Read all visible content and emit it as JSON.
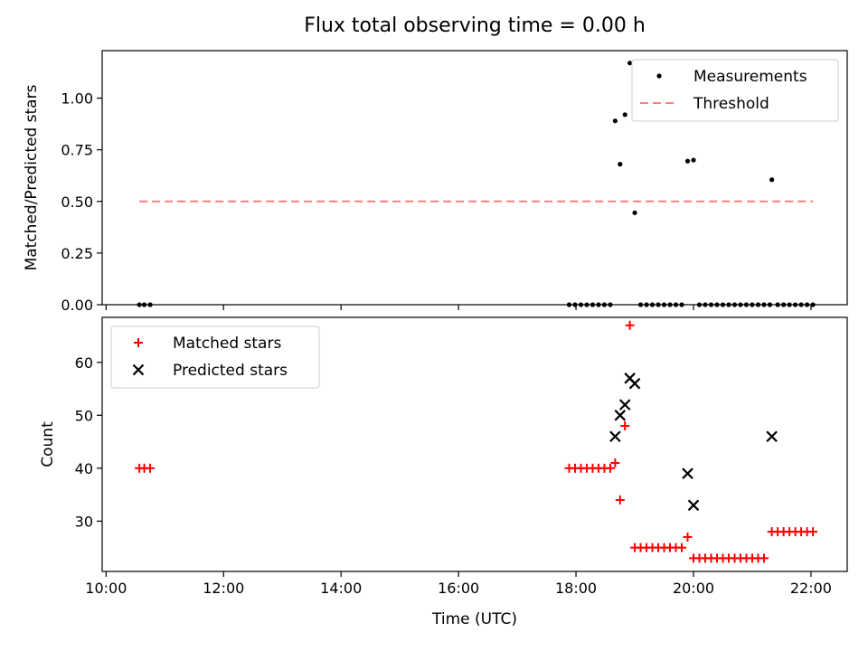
{
  "figure": {
    "title": "Flux total observing time = 0.00 h",
    "xlabel": "Time (UTC)"
  },
  "chart_data": [
    {
      "type": "scatter",
      "ylabel": "Matched/Predicted stars",
      "xlim": [
        "09:56",
        "22:37"
      ],
      "ylim": [
        0,
        1.23
      ],
      "x_ticks": [
        "10:00",
        "12:00",
        "14:00",
        "16:00",
        "18:00",
        "20:00",
        "22:00"
      ],
      "y_ticks": [
        0.0,
        0.25,
        0.5,
        0.75,
        1.0
      ],
      "y_tick_labels": [
        "0.00",
        "0.25",
        "0.50",
        "0.75",
        "1.00"
      ],
      "legend": {
        "placement": "top-right",
        "entries": [
          "Measurements",
          "Threshold"
        ]
      },
      "series": [
        {
          "name": "Measurements",
          "marker": "dot",
          "color": "#000000",
          "points": [
            [
              "10:34",
              0
            ],
            [
              "10:39",
              0
            ],
            [
              "10:45",
              0
            ],
            [
              "17:53",
              0
            ],
            [
              "17:59",
              0
            ],
            [
              "18:05",
              0
            ],
            [
              "18:11",
              0
            ],
            [
              "18:17",
              0
            ],
            [
              "18:23",
              0
            ],
            [
              "18:29",
              0
            ],
            [
              "18:35",
              0
            ],
            [
              "18:40",
              0.89
            ],
            [
              "18:45",
              0.68
            ],
            [
              "18:50",
              0.92
            ],
            [
              "18:55",
              1.17
            ],
            [
              "19:00",
              0.445
            ],
            [
              "19:06",
              0
            ],
            [
              "19:12",
              0
            ],
            [
              "19:18",
              0
            ],
            [
              "19:24",
              0
            ],
            [
              "19:30",
              0
            ],
            [
              "19:36",
              0
            ],
            [
              "19:42",
              0
            ],
            [
              "19:48",
              0
            ],
            [
              "19:54",
              0.695
            ],
            [
              "20:00",
              0.7
            ],
            [
              "20:06",
              0
            ],
            [
              "20:12",
              0
            ],
            [
              "20:18",
              0
            ],
            [
              "20:24",
              0
            ],
            [
              "20:30",
              0
            ],
            [
              "20:36",
              0
            ],
            [
              "20:42",
              0
            ],
            [
              "20:48",
              0
            ],
            [
              "20:54",
              0
            ],
            [
              "21:00",
              0
            ],
            [
              "21:06",
              0
            ],
            [
              "21:12",
              0
            ],
            [
              "21:18",
              0
            ],
            [
              "21:20",
              0.605
            ],
            [
              "21:26",
              0
            ],
            [
              "21:32",
              0
            ],
            [
              "21:38",
              0
            ],
            [
              "21:44",
              0
            ],
            [
              "21:50",
              0
            ],
            [
              "21:56",
              0
            ],
            [
              "22:02",
              0
            ]
          ]
        },
        {
          "name": "Threshold",
          "marker": "dashed-line",
          "color": "#ff7f7f",
          "points": [
            [
              "10:34",
              0.5
            ],
            [
              "22:02",
              0.5
            ]
          ]
        }
      ]
    },
    {
      "type": "scatter",
      "ylabel": "Count",
      "xlim": [
        "09:56",
        "22:37"
      ],
      "ylim": [
        20.5,
        68.5
      ],
      "x_ticks": [
        "10:00",
        "12:00",
        "14:00",
        "16:00",
        "18:00",
        "20:00",
        "22:00"
      ],
      "y_ticks": [
        30,
        40,
        50,
        60
      ],
      "y_tick_labels": [
        "30",
        "40",
        "50",
        "60"
      ],
      "legend": {
        "placement": "top-left",
        "entries": [
          "Matched stars",
          "Predicted stars"
        ]
      },
      "series": [
        {
          "name": "Matched stars",
          "marker": "plus",
          "color": "#ff0000",
          "points": [
            [
              "10:34",
              40
            ],
            [
              "10:39",
              40
            ],
            [
              "10:45",
              40
            ],
            [
              "17:53",
              40
            ],
            [
              "17:59",
              40
            ],
            [
              "18:05",
              40
            ],
            [
              "18:11",
              40
            ],
            [
              "18:17",
              40
            ],
            [
              "18:23",
              40
            ],
            [
              "18:29",
              40
            ],
            [
              "18:35",
              40
            ],
            [
              "18:40",
              41
            ],
            [
              "18:45",
              34
            ],
            [
              "18:50",
              48
            ],
            [
              "18:55",
              67
            ],
            [
              "19:00",
              25
            ],
            [
              "19:06",
              25
            ],
            [
              "19:12",
              25
            ],
            [
              "19:18",
              25
            ],
            [
              "19:24",
              25
            ],
            [
              "19:30",
              25
            ],
            [
              "19:36",
              25
            ],
            [
              "19:42",
              25
            ],
            [
              "19:48",
              25
            ],
            [
              "19:54",
              27
            ],
            [
              "20:00",
              23
            ],
            [
              "20:06",
              23
            ],
            [
              "20:12",
              23
            ],
            [
              "20:18",
              23
            ],
            [
              "20:24",
              23
            ],
            [
              "20:30",
              23
            ],
            [
              "20:36",
              23
            ],
            [
              "20:42",
              23
            ],
            [
              "20:48",
              23
            ],
            [
              "20:54",
              23
            ],
            [
              "21:00",
              23
            ],
            [
              "21:06",
              23
            ],
            [
              "21:12",
              23
            ],
            [
              "21:20",
              28
            ],
            [
              "21:26",
              28
            ],
            [
              "21:32",
              28
            ],
            [
              "21:38",
              28
            ],
            [
              "21:44",
              28
            ],
            [
              "21:50",
              28
            ],
            [
              "21:56",
              28
            ],
            [
              "22:02",
              28
            ]
          ]
        },
        {
          "name": "Predicted stars",
          "marker": "x",
          "color": "#000000",
          "points": [
            [
              "18:40",
              46
            ],
            [
              "18:45",
              50
            ],
            [
              "18:50",
              52
            ],
            [
              "18:55",
              57
            ],
            [
              "19:00",
              56
            ],
            [
              "19:54",
              39
            ],
            [
              "20:00",
              33
            ],
            [
              "21:20",
              46
            ]
          ]
        }
      ]
    }
  ]
}
